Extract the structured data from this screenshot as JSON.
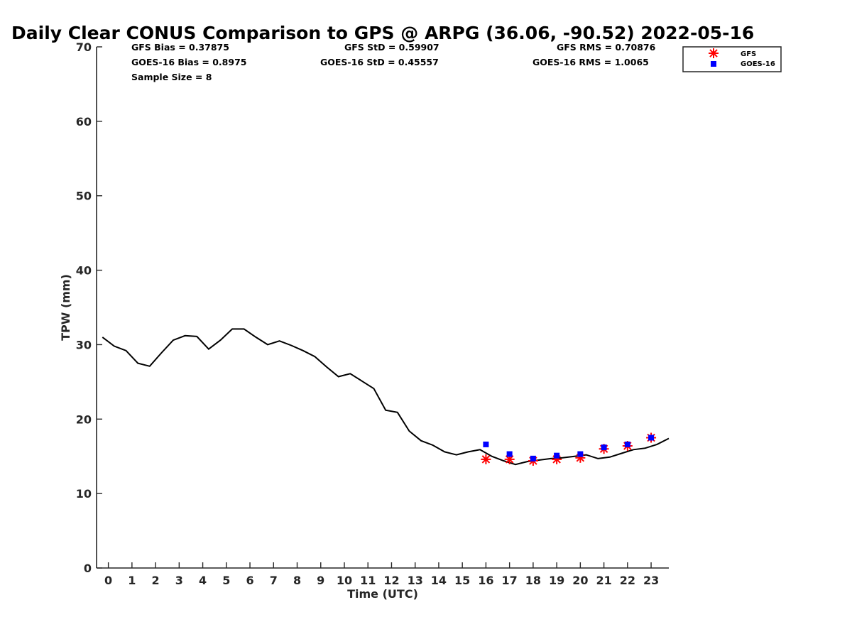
{
  "chart_data": {
    "type": "line",
    "title": "Daily Clear CONUS Comparison to GPS @ ARPG (36.06, -90.52) 2022-05-16",
    "xlabel": "Time (UTC)",
    "ylabel": "TPW (mm)",
    "xlim": [
      -0.5,
      23.75
    ],
    "ylim": [
      0,
      70
    ],
    "x_ticks": [
      "0",
      "1",
      "2",
      "3",
      "4",
      "5",
      "6",
      "7",
      "8",
      "9",
      "10",
      "11",
      "12",
      "13",
      "14",
      "15",
      "16",
      "17",
      "18",
      "19",
      "20",
      "21",
      "22",
      "23"
    ],
    "y_ticks": [
      "0",
      "10",
      "20",
      "30",
      "40",
      "50",
      "60",
      "70"
    ],
    "grid": false,
    "legend_position": "top-right",
    "stats": {
      "gfs_bias": "GFS Bias = 0.37875",
      "goes_bias": "GOES-16 Bias = 0.8975",
      "sample_size": "Sample Size = 8",
      "gfs_std": "GFS StD = 0.59907",
      "goes_std": "GOES-16 StD = 0.45557",
      "gfs_rms": "GFS RMS = 0.70876",
      "goes_rms": "GOES-16 RMS = 1.0065"
    },
    "gps_line": {
      "color": "#000000",
      "x": [
        -0.25,
        0.25,
        0.75,
        1.25,
        1.75,
        2.25,
        2.75,
        3.25,
        3.75,
        4.25,
        4.75,
        5.25,
        5.75,
        6.25,
        6.75,
        7.25,
        7.75,
        8.25,
        8.75,
        9.25,
        9.75,
        10.25,
        10.75,
        11.25,
        11.75,
        12.25,
        12.75,
        13.25,
        13.75,
        14.25,
        14.75,
        15.25,
        15.75,
        16.25,
        16.75,
        17.25,
        17.75,
        18.25,
        18.75,
        19.25,
        19.75,
        20.25,
        20.75,
        21.25,
        21.75,
        22.25,
        22.75,
        23.25,
        23.75
      ],
      "y": [
        31.0,
        29.8,
        29.2,
        27.5,
        27.1,
        28.9,
        30.6,
        31.2,
        31.1,
        29.4,
        30.6,
        32.1,
        32.1,
        31.0,
        30.0,
        30.5,
        29.9,
        29.2,
        28.4,
        27.0,
        25.7,
        26.1,
        25.1,
        24.1,
        21.2,
        20.9,
        18.4,
        17.1,
        16.5,
        15.6,
        15.2,
        15.6,
        15.9,
        15.0,
        14.4,
        13.9,
        14.3,
        14.5,
        14.7,
        14.8,
        15.0,
        15.2,
        14.7,
        14.9,
        15.4,
        15.9,
        16.1,
        16.6,
        17.4
      ]
    },
    "series": [
      {
        "name": "GFS",
        "color": "#ff0000",
        "marker": "asterisk",
        "x": [
          16,
          17,
          18,
          19,
          20,
          21,
          22,
          23
        ],
        "y": [
          14.6,
          14.6,
          14.4,
          14.6,
          14.8,
          16.0,
          16.4,
          17.5
        ]
      },
      {
        "name": "GOES-16",
        "color": "#0000ff",
        "marker": "square",
        "x": [
          16,
          17,
          18,
          19,
          20,
          21,
          22,
          23
        ],
        "y": [
          16.6,
          15.3,
          14.7,
          15.1,
          15.3,
          16.2,
          16.6,
          17.5
        ]
      }
    ]
  }
}
